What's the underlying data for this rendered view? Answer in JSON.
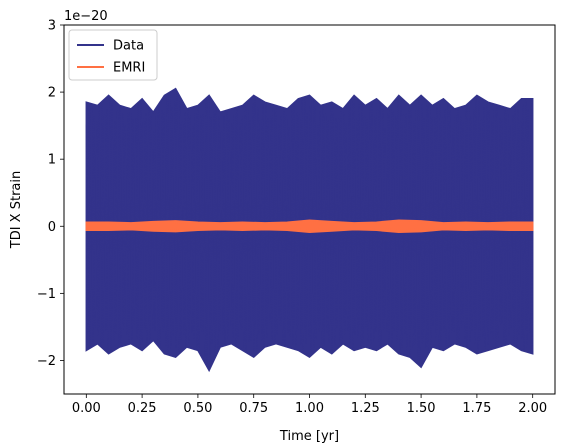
{
  "chart_data": {
    "type": "line",
    "title": "",
    "xlabel": "Time [yr]",
    "ylabel": "TDI X Strain",
    "y_scale_text": "1e−20",
    "xlim": [
      -0.1,
      2.1
    ],
    "ylim": [
      -2.5,
      3.0
    ],
    "x_ticks": [
      0.0,
      0.25,
      0.5,
      0.75,
      1.0,
      1.25,
      1.5,
      1.75,
      2.0
    ],
    "x_tick_labels": [
      "0.00",
      "0.25",
      "0.50",
      "0.75",
      "1.00",
      "1.25",
      "1.50",
      "1.75",
      "2.00"
    ],
    "y_ticks": [
      -2,
      -1,
      0,
      1,
      2,
      3
    ],
    "y_tick_labels": [
      "−2",
      "−1",
      "0",
      "1",
      "2",
      "3"
    ],
    "grid": false,
    "legend_position": "upper-left",
    "series": [
      {
        "name": "Data",
        "color": "#33338b",
        "x": [
          0.0,
          0.05,
          0.1,
          0.15,
          0.2,
          0.25,
          0.3,
          0.35,
          0.4,
          0.45,
          0.5,
          0.55,
          0.6,
          0.65,
          0.7,
          0.75,
          0.8,
          0.85,
          0.9,
          0.95,
          1.0,
          1.05,
          1.1,
          1.15,
          1.2,
          1.25,
          1.3,
          1.35,
          1.4,
          1.45,
          1.5,
          1.55,
          1.6,
          1.65,
          1.7,
          1.75,
          1.8,
          1.85,
          1.9,
          1.95,
          2.0
        ],
        "upper": [
          1.85,
          1.8,
          1.95,
          1.8,
          1.75,
          1.9,
          1.7,
          1.95,
          2.05,
          1.75,
          1.8,
          1.95,
          1.7,
          1.75,
          1.8,
          1.95,
          1.85,
          1.8,
          1.75,
          1.9,
          1.95,
          1.8,
          1.85,
          1.75,
          1.95,
          1.8,
          1.9,
          1.75,
          1.95,
          1.8,
          1.95,
          1.8,
          1.9,
          1.75,
          1.8,
          1.95,
          1.85,
          1.8,
          1.75,
          1.9,
          1.9
        ],
        "lower": [
          -1.85,
          -1.75,
          -1.9,
          -1.8,
          -1.75,
          -1.85,
          -1.7,
          -1.9,
          -1.95,
          -1.8,
          -1.85,
          -2.15,
          -1.8,
          -1.75,
          -1.85,
          -1.95,
          -1.8,
          -1.75,
          -1.8,
          -1.85,
          -1.95,
          -1.8,
          -1.9,
          -1.75,
          -1.85,
          -1.8,
          -1.85,
          -1.75,
          -1.9,
          -1.95,
          -2.1,
          -1.8,
          -1.85,
          -1.75,
          -1.8,
          -1.9,
          -1.85,
          -1.8,
          -1.75,
          -1.85,
          -1.9
        ]
      },
      {
        "name": "EMRI",
        "color": "#ff7043",
        "x": [
          0.0,
          0.1,
          0.2,
          0.3,
          0.4,
          0.5,
          0.6,
          0.7,
          0.8,
          0.9,
          1.0,
          1.1,
          1.2,
          1.3,
          1.4,
          1.5,
          1.6,
          1.7,
          1.8,
          1.9,
          2.0
        ],
        "upper": [
          0.06,
          0.06,
          0.05,
          0.07,
          0.08,
          0.06,
          0.05,
          0.06,
          0.05,
          0.06,
          0.09,
          0.07,
          0.05,
          0.06,
          0.09,
          0.08,
          0.05,
          0.06,
          0.05,
          0.06,
          0.06
        ],
        "lower": [
          -0.06,
          -0.06,
          -0.05,
          -0.07,
          -0.08,
          -0.06,
          -0.05,
          -0.06,
          -0.05,
          -0.06,
          -0.09,
          -0.07,
          -0.05,
          -0.06,
          -0.09,
          -0.08,
          -0.05,
          -0.06,
          -0.05,
          -0.06,
          -0.06
        ]
      }
    ]
  }
}
